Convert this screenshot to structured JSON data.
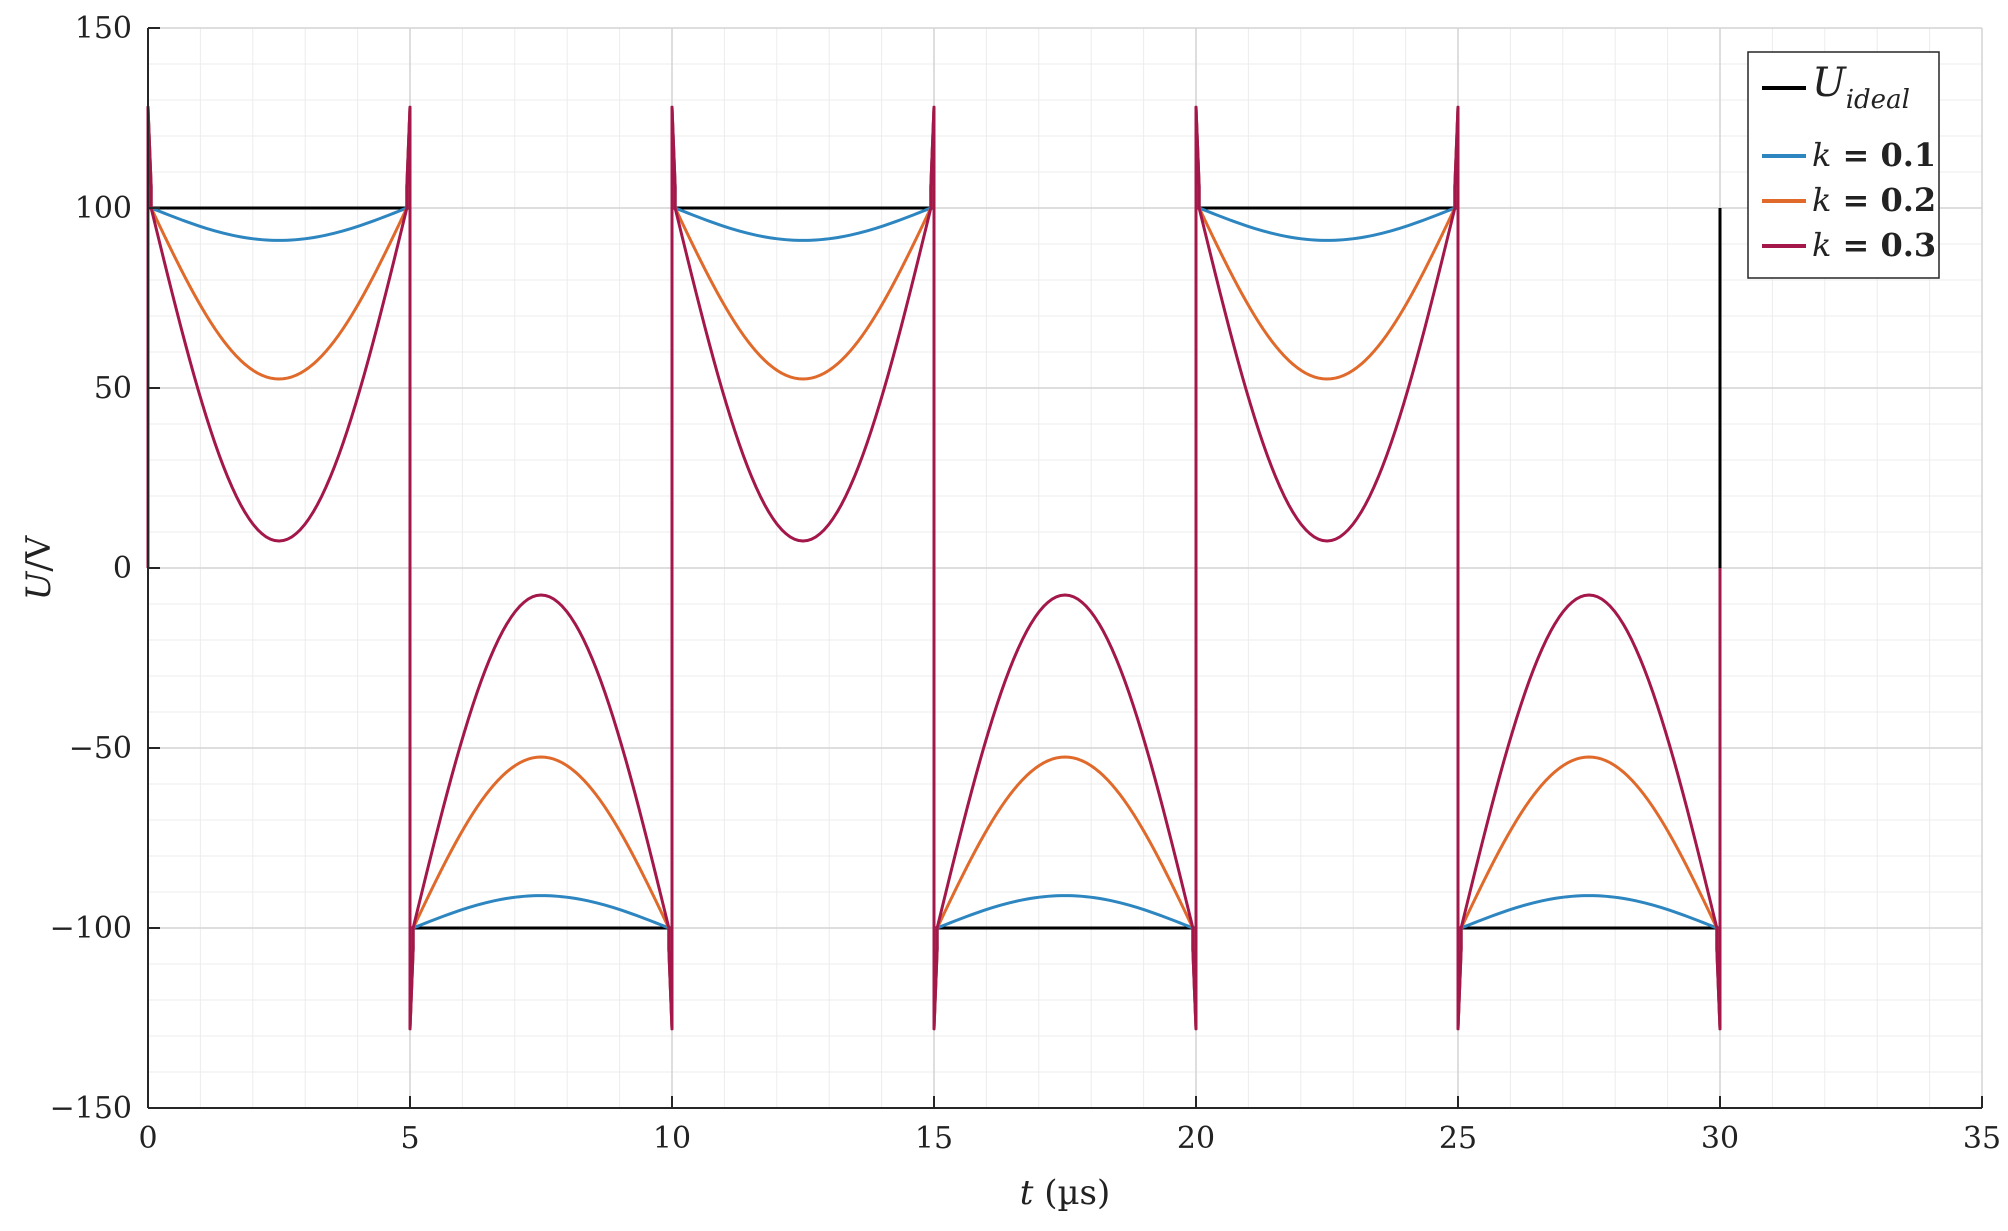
{
  "chart_data": {
    "type": "line",
    "x_range": [
      0,
      35
    ],
    "y_range": [
      -150,
      150
    ],
    "x_ticks": [
      0,
      5,
      10,
      15,
      20,
      25,
      30,
      35
    ],
    "y_ticks": [
      150,
      100,
      50,
      0,
      -50,
      -100,
      -150
    ],
    "x_tick_labels": [
      "0",
      "5",
      "10",
      "15",
      "20",
      "25",
      "30",
      "35"
    ],
    "y_tick_labels": [
      "150",
      "100",
      "50",
      "0",
      "−50",
      "−100",
      "−150"
    ],
    "xlabel": {
      "var": "t",
      "unit": " (µs)"
    },
    "ylabel": {
      "var": "U",
      "unit": "/V"
    },
    "grid": true,
    "minor_grid": true,
    "legend_position": "top-right",
    "half_period_us": 5,
    "spike_peak_v": 128,
    "series": [
      {
        "name": "U",
        "name_subscript": "ideal",
        "color": "#000000",
        "shape": "square",
        "amplitude": 100,
        "points": [
          [
            0,
            0
          ],
          [
            0,
            100
          ],
          [
            5,
            100
          ],
          [
            5,
            -100
          ],
          [
            10,
            -100
          ],
          [
            10,
            100
          ],
          [
            15,
            100
          ],
          [
            15,
            -100
          ],
          [
            20,
            -100
          ],
          [
            20,
            100
          ],
          [
            25,
            100
          ],
          [
            25,
            -100
          ],
          [
            30,
            -100
          ],
          [
            30,
            100
          ]
        ]
      },
      {
        "name": "k = 0.1",
        "legend_var": "k",
        "legend_value": " = 0.1",
        "color": "#2E86C1",
        "shape": "droop",
        "extreme_at_mid": 91
      },
      {
        "name": "k = 0.2",
        "legend_var": "k",
        "legend_value": " = 0.2",
        "color": "#E06A2B",
        "shape": "droop",
        "extreme_at_mid": 52.5
      },
      {
        "name": "k = 0.3",
        "legend_var": "k",
        "legend_value": " = 0.3",
        "color": "#A3174A",
        "shape": "droop",
        "extreme_at_mid": 7.5
      }
    ]
  }
}
